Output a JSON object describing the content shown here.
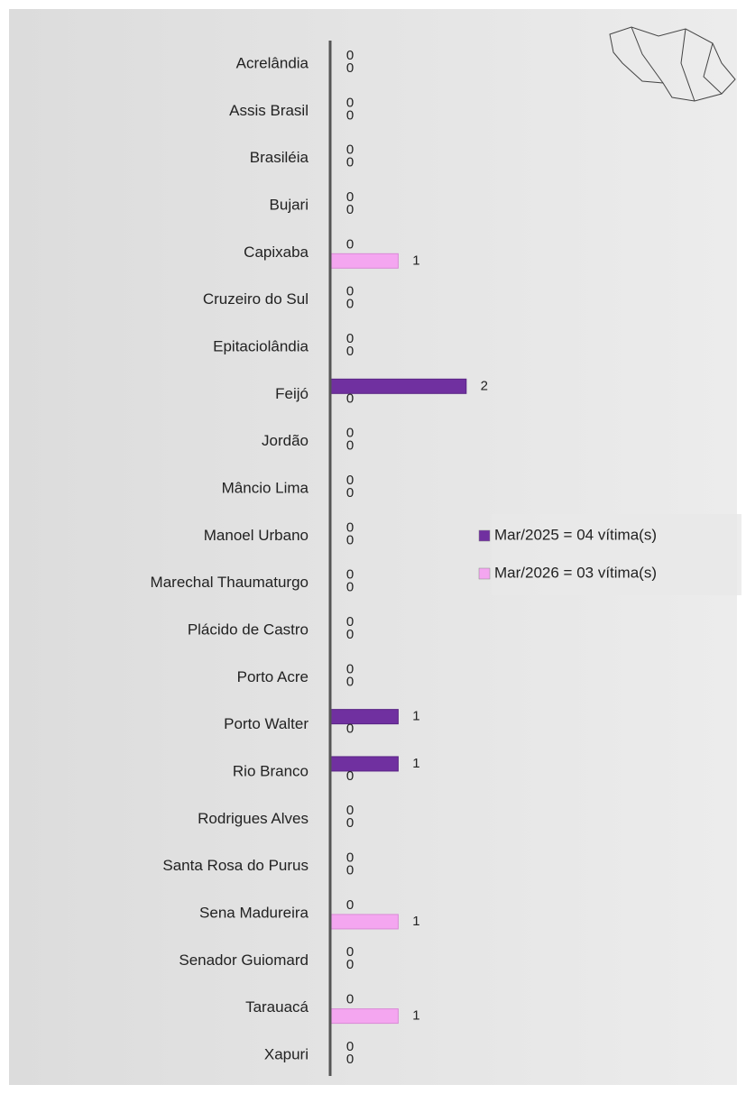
{
  "chart_data": {
    "type": "barh",
    "categories": [
      "Acrelândia",
      "Assis Brasil",
      "Brasiléia",
      "Bujari",
      "Capixaba",
      "Cruzeiro do Sul",
      "Epitaciolândia",
      "Feijó",
      "Jordão",
      "Mâncio Lima",
      "Manoel Urbano",
      "Marechal Thaumaturgo",
      "Plácido de Castro",
      "Porto Acre",
      "Porto Walter",
      "Rio Branco",
      "Rodrigues Alves",
      "Santa Rosa do Purus",
      "Sena Madureira",
      "Senador Guiomard",
      "Tarauacá",
      "Xapuri"
    ],
    "series": [
      {
        "name": "Mar/2025 = 04 vítima(s)",
        "color": "#7030a0",
        "values": [
          0,
          0,
          0,
          0,
          0,
          0,
          0,
          2,
          0,
          0,
          0,
          0,
          0,
          0,
          1,
          1,
          0,
          0,
          0,
          0,
          0,
          0
        ]
      },
      {
        "name": "Mar/2026 = 03 vítima(s)",
        "color": "#f4a6f0",
        "values": [
          0,
          0,
          0,
          0,
          1,
          0,
          0,
          0,
          0,
          0,
          0,
          0,
          0,
          0,
          0,
          0,
          0,
          0,
          1,
          0,
          1,
          0
        ]
      }
    ],
    "xlim": [
      0,
      5
    ],
    "legend": "right"
  }
}
